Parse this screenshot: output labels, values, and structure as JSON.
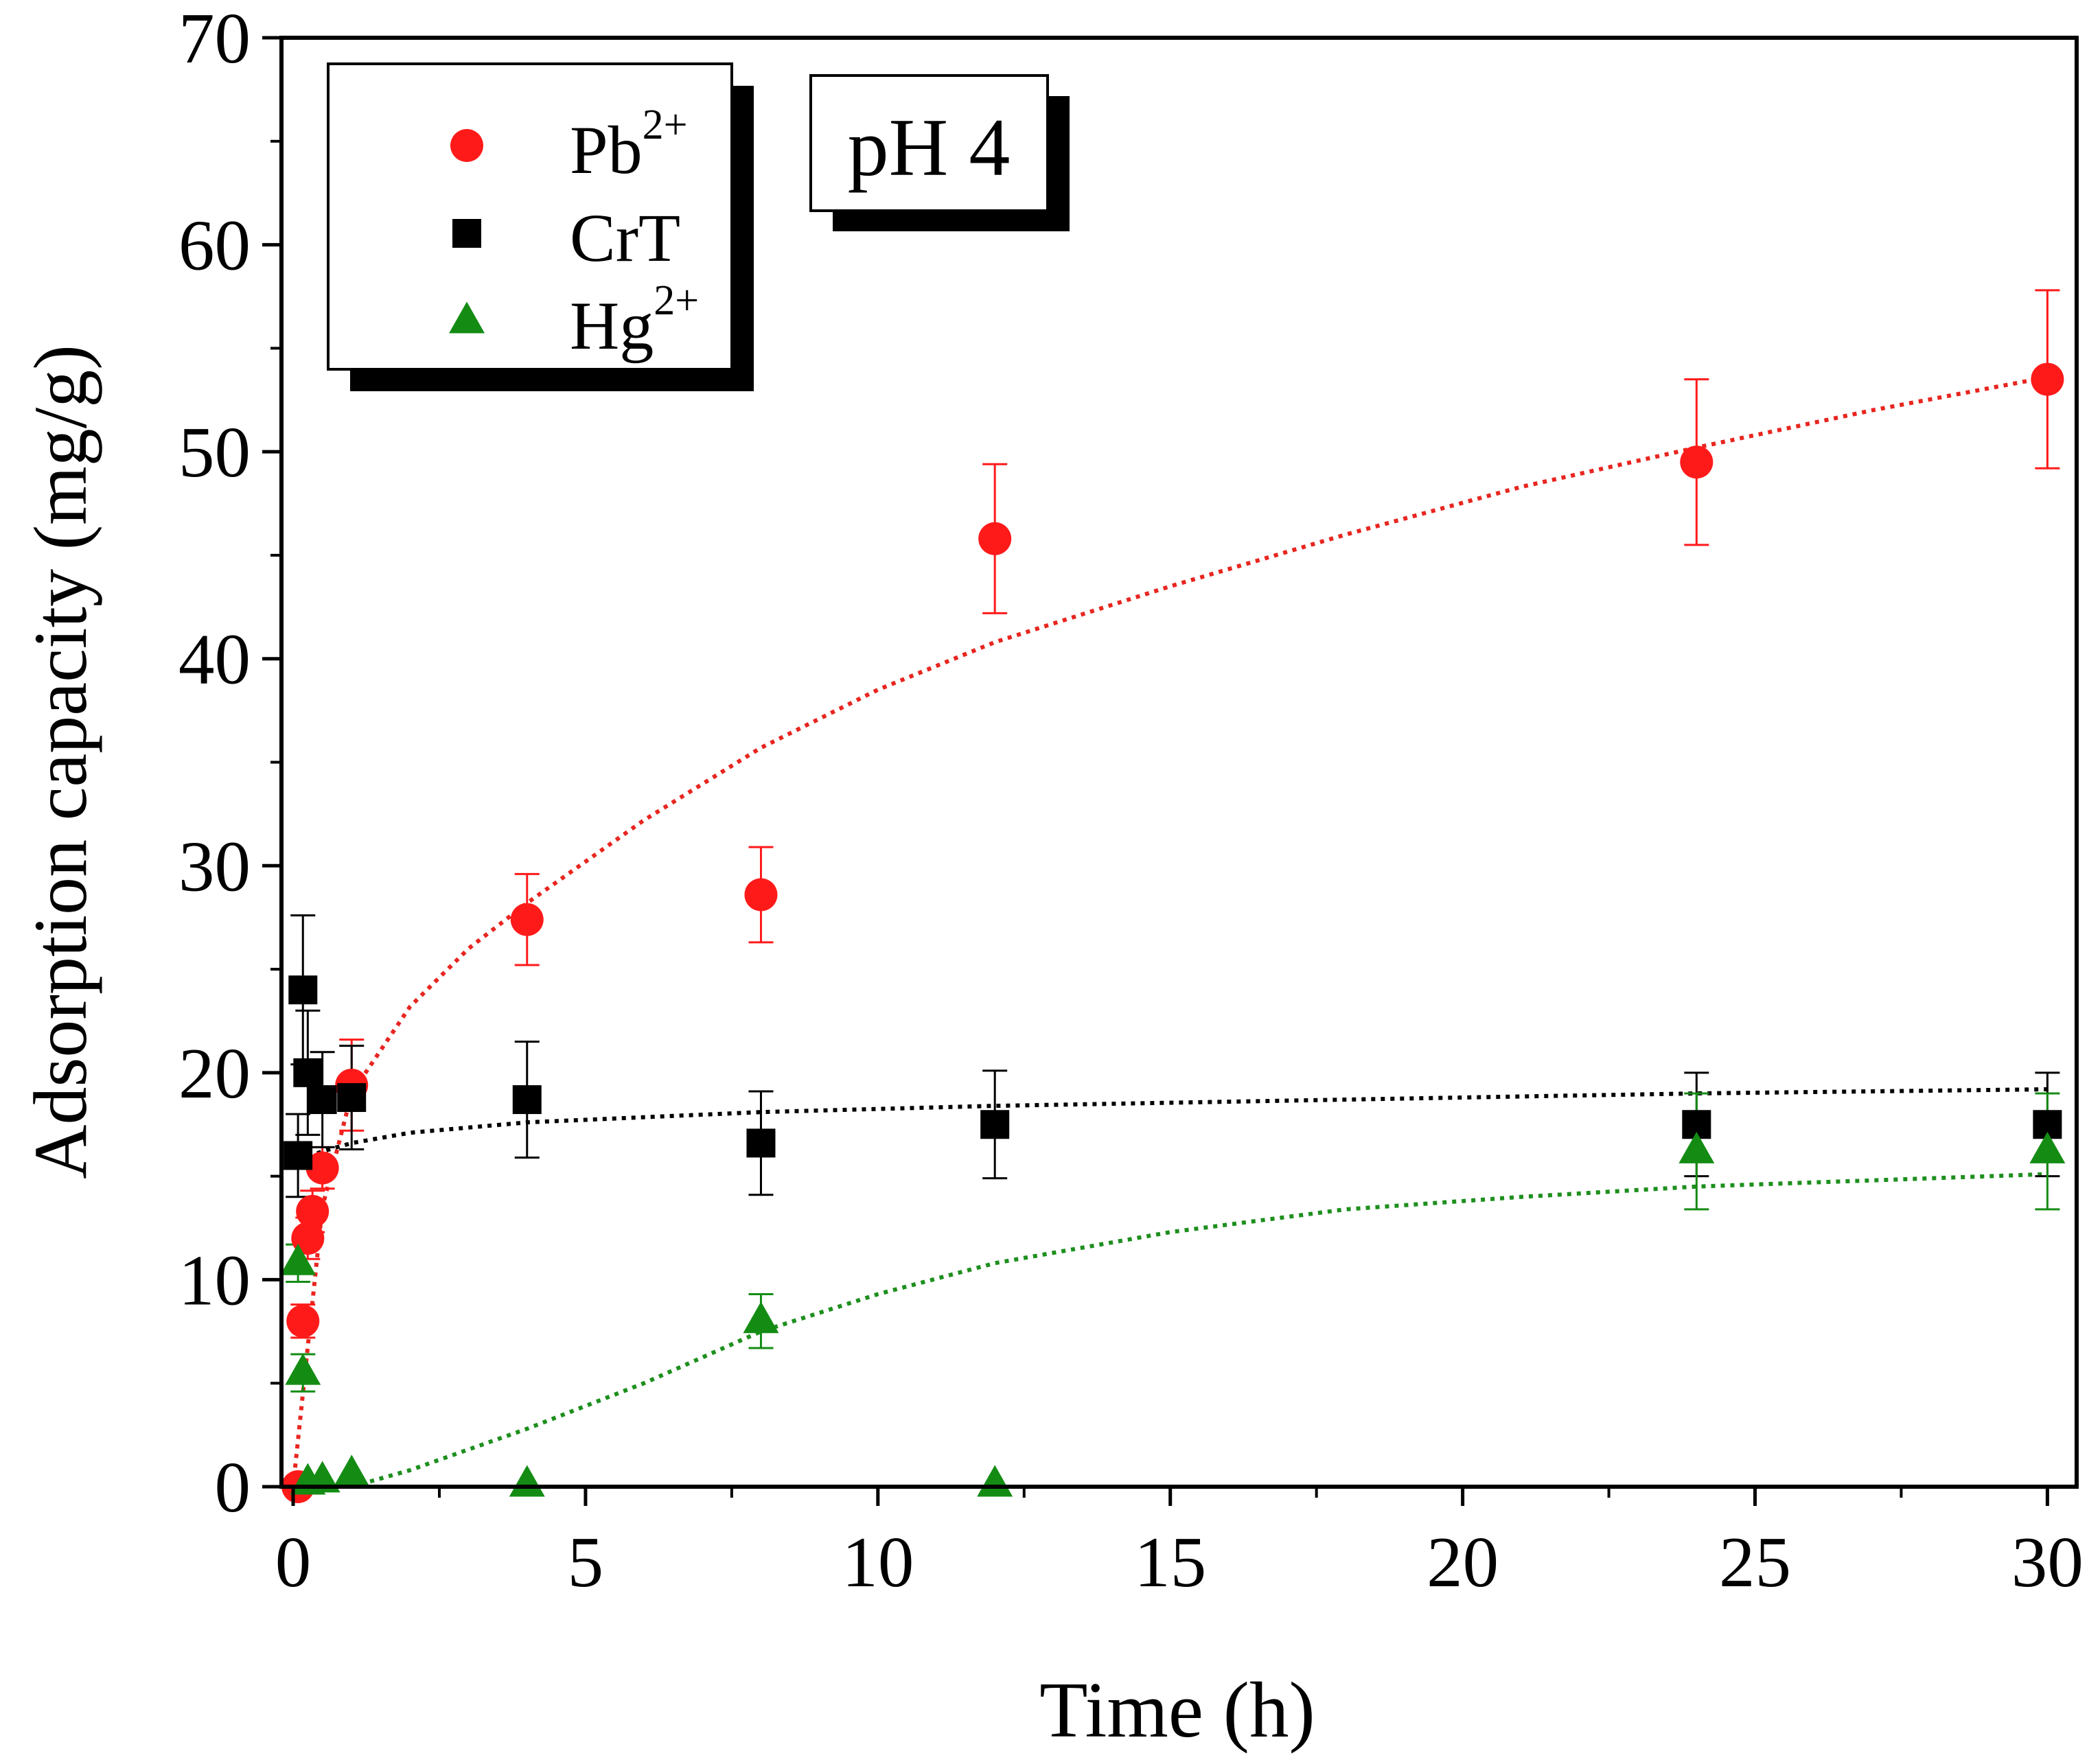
{
  "chart_data": {
    "type": "scatter",
    "title": "",
    "annotation": "pH 4",
    "xlabel": "Time (h)",
    "ylabel": "Adsorption capacity (mg/g)",
    "xlim": [
      -0.2,
      30.5
    ],
    "ylim": [
      0,
      70
    ],
    "xticks": [
      0,
      5,
      10,
      15,
      20,
      25,
      30
    ],
    "xtick_labels": [
      "0",
      "5",
      "10",
      "15",
      "20",
      "25",
      "30"
    ],
    "yticks": [
      0,
      10,
      20,
      30,
      40,
      50,
      60,
      70
    ],
    "ytick_labels": [
      "0",
      "10",
      "20",
      "30",
      "40",
      "50",
      "60",
      "70"
    ],
    "legend_position": "top-left",
    "grid": false,
    "series": [
      {
        "name": "Pb",
        "superscript": "2+",
        "marker": "circle",
        "color": "#ff1a1a",
        "fit_color": "#e8251f",
        "points": [
          {
            "x": 0.083,
            "y": 0,
            "err": 0
          },
          {
            "x": 0.167,
            "y": 8,
            "err": 0.8
          },
          {
            "x": 0.25,
            "y": 12,
            "err": 1
          },
          {
            "x": 0.33,
            "y": 13.3,
            "err": 1
          },
          {
            "x": 0.5,
            "y": 15.4,
            "err": 1
          },
          {
            "x": 1,
            "y": 19.4,
            "err": 2.2
          },
          {
            "x": 4,
            "y": 27.4,
            "err": 2.2
          },
          {
            "x": 8,
            "y": 28.6,
            "err": 2.3
          },
          {
            "x": 12,
            "y": 45.8,
            "err": 3.6
          },
          {
            "x": 24,
            "y": 49.5,
            "err": 4
          },
          {
            "x": 30,
            "y": 53.5,
            "err": 4.3
          }
        ],
        "fit": {
          "x": [
            0,
            0.5,
            1,
            2,
            3,
            4,
            6,
            8,
            10,
            12,
            15,
            18,
            21,
            24,
            27,
            30
          ],
          "y": [
            0,
            13.5,
            19,
            23.2,
            26,
            28.2,
            32.2,
            35.7,
            38.5,
            40.8,
            43.5,
            46,
            48.3,
            50.2,
            52,
            53.6
          ]
        }
      },
      {
        "name": "CrT",
        "superscript": "",
        "marker": "square",
        "color": "#000000",
        "fit_color": "#000000",
        "points": [
          {
            "x": 0.083,
            "y": 16,
            "err": 2
          },
          {
            "x": 0.167,
            "y": 24,
            "err": 3.6
          },
          {
            "x": 0.25,
            "y": 20,
            "err": 3
          },
          {
            "x": 0.5,
            "y": 18.7,
            "err": 2.3
          },
          {
            "x": 1,
            "y": 18.8,
            "err": 2.5
          },
          {
            "x": 4,
            "y": 18.7,
            "err": 2.8
          },
          {
            "x": 8,
            "y": 16.6,
            "err": 2.5
          },
          {
            "x": 12,
            "y": 17.5,
            "err": 2.6
          },
          {
            "x": 24,
            "y": 17.5,
            "err": 2.5
          },
          {
            "x": 30,
            "y": 17.5,
            "err": 2.5
          }
        ],
        "fit": {
          "x": [
            0.1,
            0.5,
            1,
            2,
            4,
            8,
            12,
            16,
            20,
            24,
            30
          ],
          "y": [
            15.8,
            16.2,
            16.6,
            17.1,
            17.6,
            18.1,
            18.4,
            18.6,
            18.8,
            19,
            19.2
          ]
        }
      },
      {
        "name": "Hg",
        "superscript": "2+",
        "marker": "triangle",
        "color": "#148c14",
        "fit_color": "#1e8f1e",
        "points": [
          {
            "x": 0.083,
            "y": 10.8,
            "err": 0.9
          },
          {
            "x": 0.167,
            "y": 5.5,
            "err": 0.9
          },
          {
            "x": 0.25,
            "y": 0.2,
            "err": 0
          },
          {
            "x": 0.5,
            "y": 0.3,
            "err": 0
          },
          {
            "x": 1,
            "y": 0.6,
            "err": 0
          },
          {
            "x": 4,
            "y": 0.1,
            "err": 0
          },
          {
            "x": 8,
            "y": 8,
            "err": 1.3
          },
          {
            "x": 12,
            "y": 0.1,
            "err": 0
          },
          {
            "x": 24,
            "y": 16.2,
            "err": 2.8
          },
          {
            "x": 30,
            "y": 16.2,
            "err": 2.8
          }
        ],
        "fit": {
          "x": [
            1,
            2,
            3,
            4,
            5,
            6,
            8,
            10,
            12,
            15,
            18,
            21,
            24,
            27,
            30
          ],
          "y": [
            0,
            0.8,
            1.8,
            2.8,
            3.9,
            5,
            7.5,
            9.3,
            10.8,
            12.3,
            13.4,
            14,
            14.5,
            14.8,
            15.1
          ]
        }
      }
    ]
  }
}
